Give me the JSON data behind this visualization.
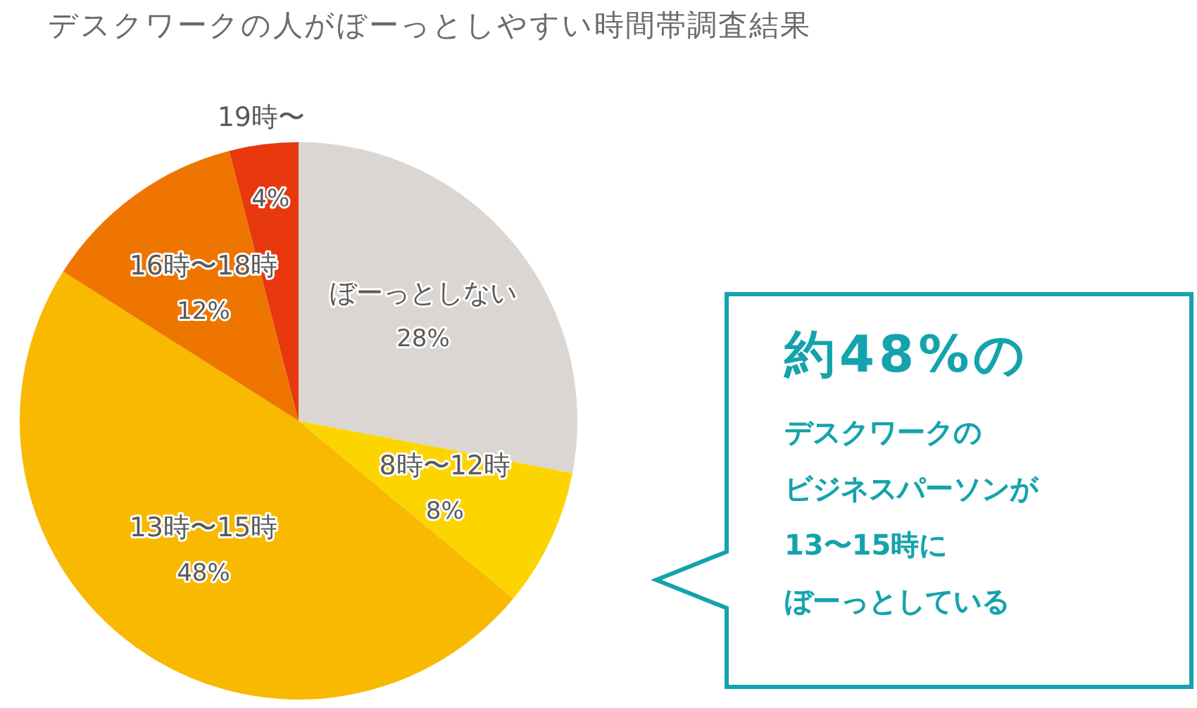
{
  "chart_data": {
    "type": "pie",
    "title": "デスクワークの人がぼーっとしやすい時間帯調査結果",
    "categories": [
      "ぼーっとしない",
      "8時〜12時",
      "13時〜15時",
      "16時〜18時",
      "19時〜"
    ],
    "values": [
      28,
      8,
      48,
      12,
      4
    ],
    "value_labels": [
      "28%",
      "8%",
      "48%",
      "12%",
      "4%"
    ],
    "colors": [
      "#dbd6d2",
      "#fcd500",
      "#f8b900",
      "#ee7600",
      "#e8380d"
    ],
    "legend": false,
    "annotations": [
      "約48%の",
      "デスクワークの",
      "ビジネスパーソンが",
      "13〜15時に",
      "ぼーっとしている"
    ]
  }
}
